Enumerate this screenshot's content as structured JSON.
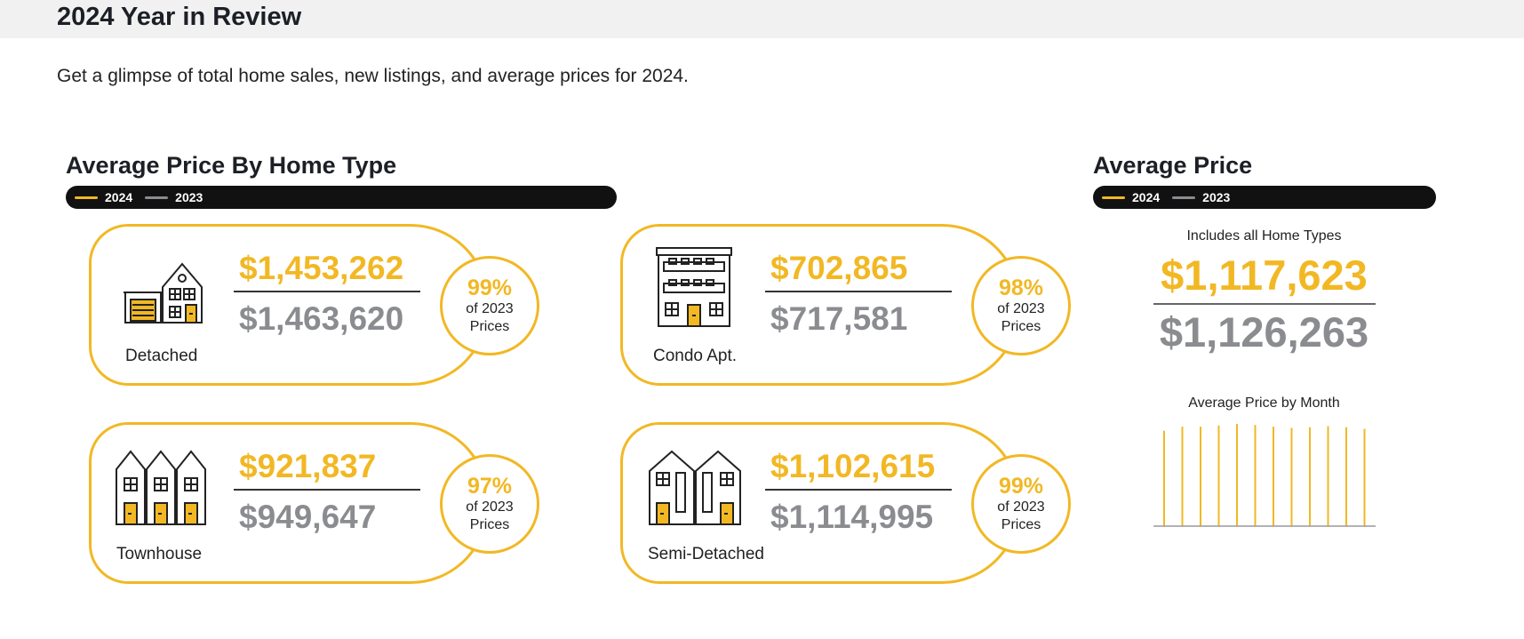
{
  "header": {
    "title": "2024 Year in Review",
    "subtitle": "Get a glimpse of total home sales, new listings, and average prices for 2024."
  },
  "legend": {
    "year_current": "2024",
    "year_previous": "2023"
  },
  "colors": {
    "current": "#f2b824",
    "previous": "#8a8c90",
    "legend_bg": "#111111"
  },
  "home_type_section": {
    "title": "Average Price By Home Type",
    "cards": [
      {
        "type": "Detached",
        "icon": "house-icon",
        "price_2024": "$1,453,262",
        "price_2023": "$1,463,620",
        "pct": "99%",
        "pct_caption": "of 2023 Prices"
      },
      {
        "type": "Condo Apt.",
        "icon": "condo-building-icon",
        "price_2024": "$702,865",
        "price_2023": "$717,581",
        "pct": "98%",
        "pct_caption": "of 2023 Prices"
      },
      {
        "type": "Townhouse",
        "icon": "townhouse-icon",
        "price_2024": "$921,837",
        "price_2023": "$949,647",
        "pct": "97%",
        "pct_caption": "of 2023 Prices"
      },
      {
        "type": "Semi-Detached",
        "icon": "semi-detached-icon",
        "price_2024": "$1,102,615",
        "price_2023": "$1,114,995",
        "pct": "99%",
        "pct_caption": "of 2023 Prices"
      }
    ]
  },
  "average_price_section": {
    "title": "Average Price",
    "includes_label": "Includes all Home Types",
    "price_2024": "$1,117,623",
    "price_2023": "$1,126,263"
  },
  "chart_data": {
    "type": "bar",
    "title": "Average Price by Month",
    "xlabel": "",
    "ylabel": "",
    "categories": [
      "",
      "",
      "",
      "",
      "",
      "",
      "",
      "",
      "",
      "",
      "",
      ""
    ],
    "series": [
      {
        "values": [
          1.026,
          1.07,
          1.07,
          1.084,
          1.1,
          1.089,
          1.07,
          1.058,
          1.064,
          1.076,
          1.065,
          1.047
        ]
      }
    ],
    "ylim": [
      0,
      1.1
    ],
    "grid": false,
    "legend": "none"
  }
}
